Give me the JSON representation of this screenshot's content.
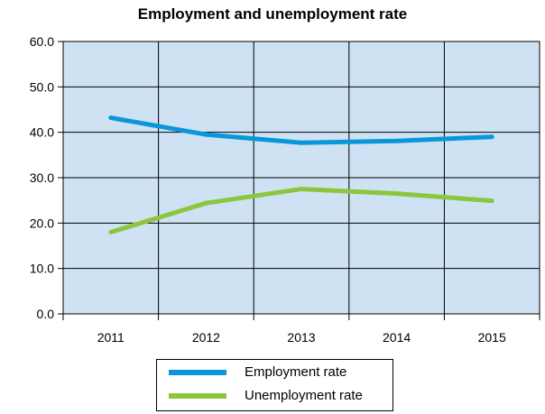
{
  "chart_data": {
    "type": "line",
    "title": "Employment and unemployment rate",
    "xlabel": "",
    "ylabel": "",
    "categories": [
      "2011",
      "2012",
      "2013",
      "2014",
      "2015"
    ],
    "y_ticks": [
      "0.0",
      "10.0",
      "20.0",
      "30.0",
      "40.0",
      "50.0",
      "60.0"
    ],
    "ylim": [
      0,
      60
    ],
    "grid": true,
    "plot_background": "#cfe2f3",
    "series": [
      {
        "name": "Employment rate",
        "color": "#0a97d9",
        "values": [
          43.2,
          39.5,
          37.7,
          38.1,
          39.0
        ]
      },
      {
        "name": "Unemployment rate",
        "color": "#8cc63f",
        "values": [
          18.0,
          24.4,
          27.5,
          26.5,
          24.9
        ]
      }
    ],
    "legend_position": "bottom"
  }
}
